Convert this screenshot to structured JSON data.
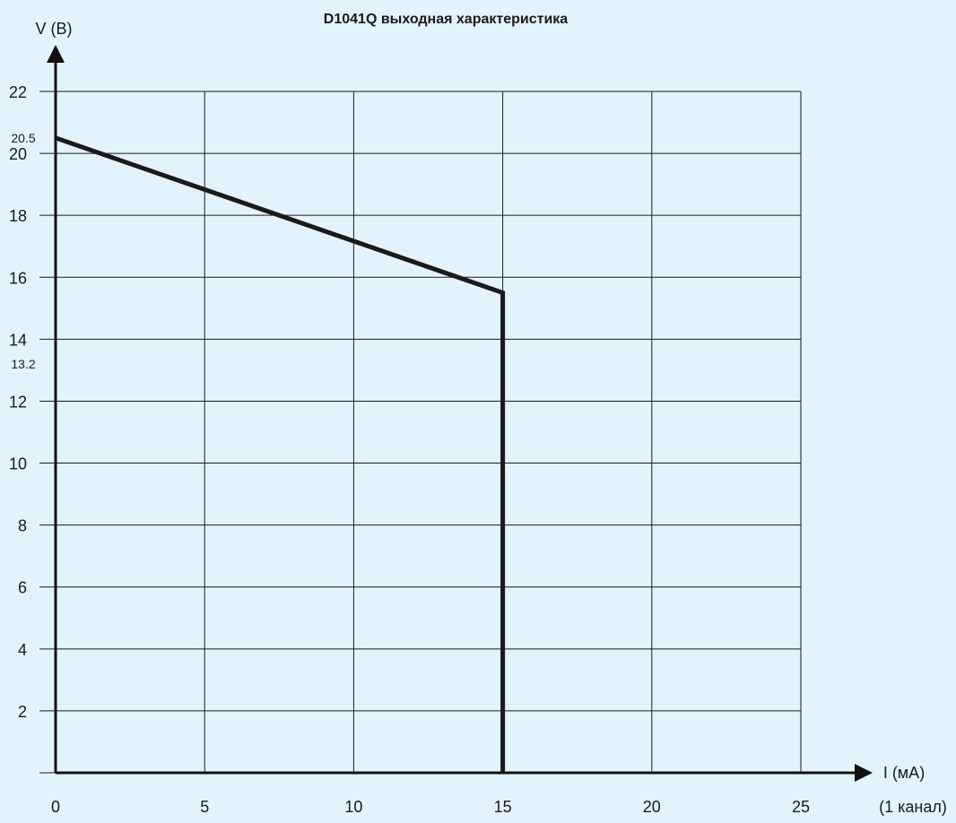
{
  "chart_data": {
    "type": "line",
    "title": "D1041Q выходная характеристика",
    "xlabel": "I (мА)",
    "xlabel_note": "(1 канал)",
    "ylabel": "V (B)",
    "xlim": [
      0,
      25
    ],
    "ylim": [
      0,
      22
    ],
    "x_ticks": [
      0,
      5,
      10,
      15,
      20,
      25
    ],
    "x_tick_labels": [
      "0",
      "5",
      "10",
      "15",
      "20",
      "25"
    ],
    "y_ticks": [
      2,
      4,
      6,
      8,
      10,
      12,
      14,
      16,
      18,
      20,
      22
    ],
    "y_tick_labels": [
      "2",
      "4",
      "6",
      "8",
      "10",
      "12",
      "14",
      "16",
      "18",
      "20",
      "22"
    ],
    "extra_y_labels": [
      {
        "value": 20.5,
        "label": "20.5"
      },
      {
        "value": 13.2,
        "label": "13.2"
      }
    ],
    "grid": true,
    "series": [
      {
        "x": [
          0,
          15,
          15
        ],
        "y": [
          20.5,
          15.5,
          0
        ]
      }
    ],
    "colors": {
      "background": "#e3f3fc",
      "grid": "#1a1a1a",
      "line": "#1a1a1a"
    }
  }
}
